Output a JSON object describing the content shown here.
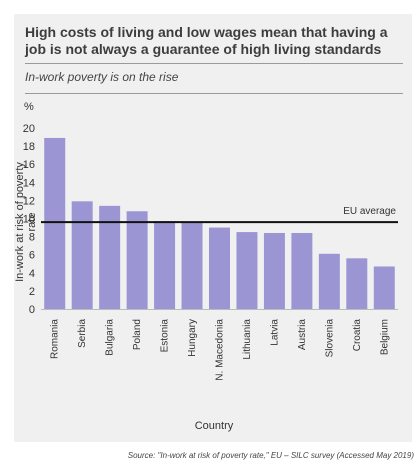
{
  "header": {
    "title": "High costs of living and low wages mean that having a job is not always a guarantee of high living standards",
    "subtitle": "In-work poverty is on the rise"
  },
  "source": "Source: \"In-work at risk of poverty rate,\" EU – SILC survey (Accessed May 2019)",
  "chart_data": {
    "type": "bar",
    "unit_label": "%",
    "xlabel": "Country",
    "ylabel": "In-work at risk of poverty rate",
    "categories": [
      "Romania",
      "Serbia",
      "Bulgaria",
      "Poland",
      "Estonia",
      "Hungary",
      "N. Macedonia",
      "Lithuania",
      "Latvia",
      "Austria",
      "Slovenia",
      "Croatia",
      "Belgium"
    ],
    "values": [
      18.9,
      11.9,
      11.4,
      10.8,
      9.7,
      9.6,
      9.0,
      8.5,
      8.4,
      8.4,
      6.1,
      5.6,
      4.7
    ],
    "ylim": [
      0,
      20
    ],
    "yticks": [
      0,
      2,
      4,
      6,
      8,
      10,
      12,
      14,
      16,
      18,
      20
    ],
    "reference_line": {
      "label": "EU average",
      "value": 9.6
    },
    "bar_color": "#9b96d3",
    "reference_color": "#111111",
    "grid": false,
    "legend": "none"
  }
}
